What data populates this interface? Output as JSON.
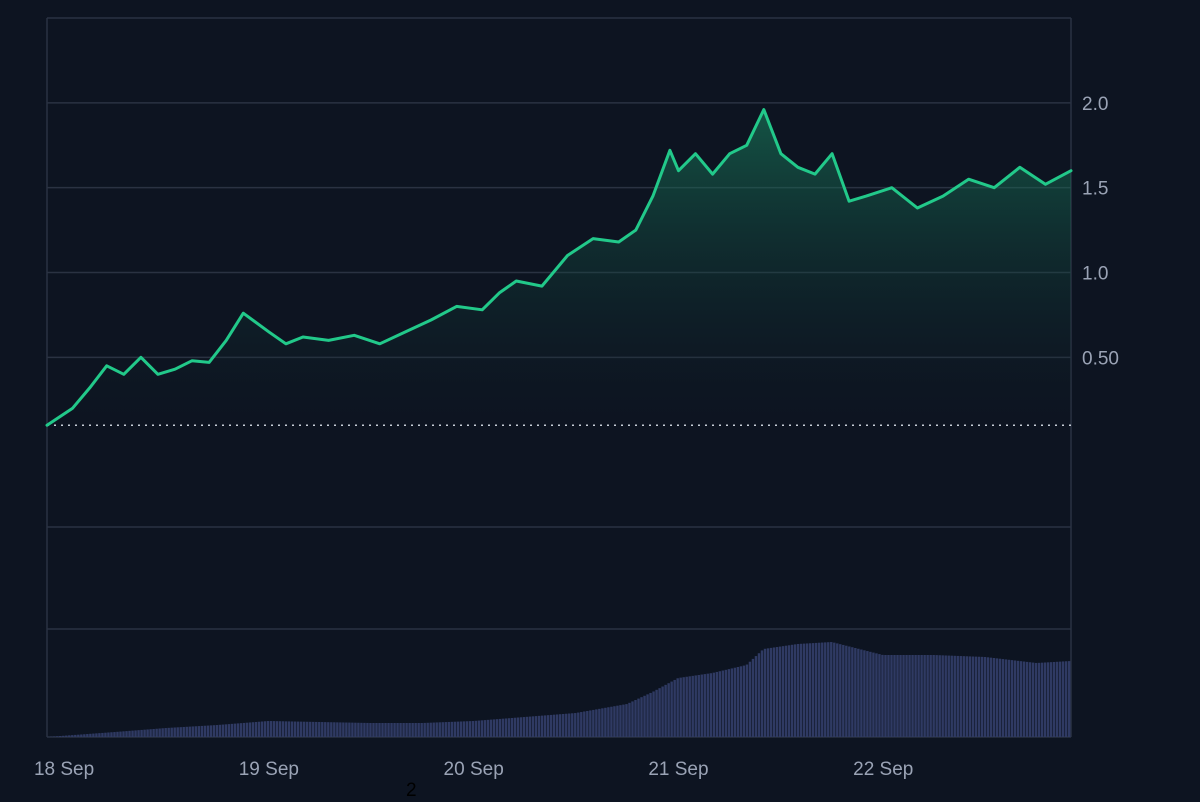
{
  "chart_data": {
    "type": "area",
    "x_type": "date",
    "title": "",
    "xlabel": "",
    "ylabel": "",
    "ylim": [
      -0.5,
      2.5
    ],
    "y_ticks": [
      0.5,
      1.0,
      1.5,
      2.0
    ],
    "y_tick_labels": [
      "0.50",
      "1.0",
      "1.5",
      "2.0"
    ],
    "x_ticks": [
      "2023-09-18",
      "2023-09-19",
      "2023-09-20",
      "2023-09-21",
      "2023-09-22"
    ],
    "x_tick_labels": [
      "18 Sep",
      "19 Sep",
      "20 Sep",
      "21 Sep",
      "22 Sep"
    ],
    "xlim": [
      "2023-09-17T22:00",
      "2023-09-22T22:00"
    ],
    "baseline": 0.1,
    "grid": true,
    "legend": "none",
    "colors": {
      "line": "#22c98a",
      "fill_top": "#1a8a63",
      "fill_bottom": "#0d1421",
      "volume": "#2f3a63",
      "baseline_dots": "#c8ced8",
      "grid": "#2a3242",
      "axis_text": "#9aa3b5"
    },
    "series": [
      {
        "x": [
          "2023-09-17T22:00",
          "2023-09-18T01:00",
          "2023-09-18T03:00",
          "2023-09-18T05:00",
          "2023-09-18T07:00",
          "2023-09-18T09:00",
          "2023-09-18T11:00",
          "2023-09-18T13:00",
          "2023-09-18T15:00",
          "2023-09-18T17:00",
          "2023-09-18T19:00",
          "2023-09-18T21:00",
          "2023-09-19T00:00",
          "2023-09-19T02:00",
          "2023-09-19T04:00",
          "2023-09-19T07:00",
          "2023-09-19T10:00",
          "2023-09-19T13:00",
          "2023-09-19T16:00",
          "2023-09-19T19:00",
          "2023-09-19T22:00",
          "2023-09-20T01:00",
          "2023-09-20T03:00",
          "2023-09-20T05:00",
          "2023-09-20T08:00",
          "2023-09-20T11:00",
          "2023-09-20T14:00",
          "2023-09-20T17:00",
          "2023-09-20T19:00",
          "2023-09-20T21:00",
          "2023-09-20T23:00",
          "2023-09-21T00:00",
          "2023-09-21T02:00",
          "2023-09-21T04:00",
          "2023-09-21T06:00",
          "2023-09-21T08:00",
          "2023-09-21T10:00",
          "2023-09-21T12:00",
          "2023-09-21T14:00",
          "2023-09-21T16:00",
          "2023-09-21T18:00",
          "2023-09-21T20:00",
          "2023-09-21T22:00",
          "2023-09-22T01:00",
          "2023-09-22T04:00",
          "2023-09-22T07:00",
          "2023-09-22T10:00",
          "2023-09-22T13:00",
          "2023-09-22T16:00",
          "2023-09-22T19:00",
          "2023-09-22T22:00"
        ],
        "values": [
          0.1,
          0.2,
          0.32,
          0.45,
          0.4,
          0.5,
          0.4,
          0.43,
          0.48,
          0.47,
          0.6,
          0.76,
          0.65,
          0.58,
          0.62,
          0.6,
          0.63,
          0.58,
          0.65,
          0.72,
          0.8,
          0.78,
          0.88,
          0.95,
          0.92,
          1.1,
          1.2,
          1.18,
          1.25,
          1.45,
          1.72,
          1.6,
          1.7,
          1.58,
          1.7,
          1.75,
          1.96,
          1.7,
          1.62,
          1.58,
          1.7,
          1.42,
          1.45,
          1.5,
          1.38,
          1.45,
          1.55,
          1.5,
          1.62,
          1.52,
          1.6
        ]
      }
    ],
    "volume": {
      "x": [
        "2023-09-17T22:00",
        "2023-09-18T06:00",
        "2023-09-18T12:00",
        "2023-09-18T18:00",
        "2023-09-19T00:00",
        "2023-09-19T06:00",
        "2023-09-19T12:00",
        "2023-09-19T18:00",
        "2023-09-20T00:00",
        "2023-09-20T06:00",
        "2023-09-20T12:00",
        "2023-09-20T18:00",
        "2023-09-20T21:00",
        "2023-09-21T00:00",
        "2023-09-21T04:00",
        "2023-09-21T08:00",
        "2023-09-21T10:00",
        "2023-09-21T14:00",
        "2023-09-21T18:00",
        "2023-09-22T00:00",
        "2023-09-22T06:00",
        "2023-09-22T12:00",
        "2023-09-22T18:00",
        "2023-09-22T22:00"
      ],
      "values": [
        0,
        5,
        9,
        12,
        16,
        15,
        14,
        14,
        16,
        20,
        24,
        33,
        45,
        59,
        64,
        72,
        88,
        93,
        95,
        82,
        82,
        80,
        74,
        76
      ]
    }
  },
  "footnote": "2"
}
